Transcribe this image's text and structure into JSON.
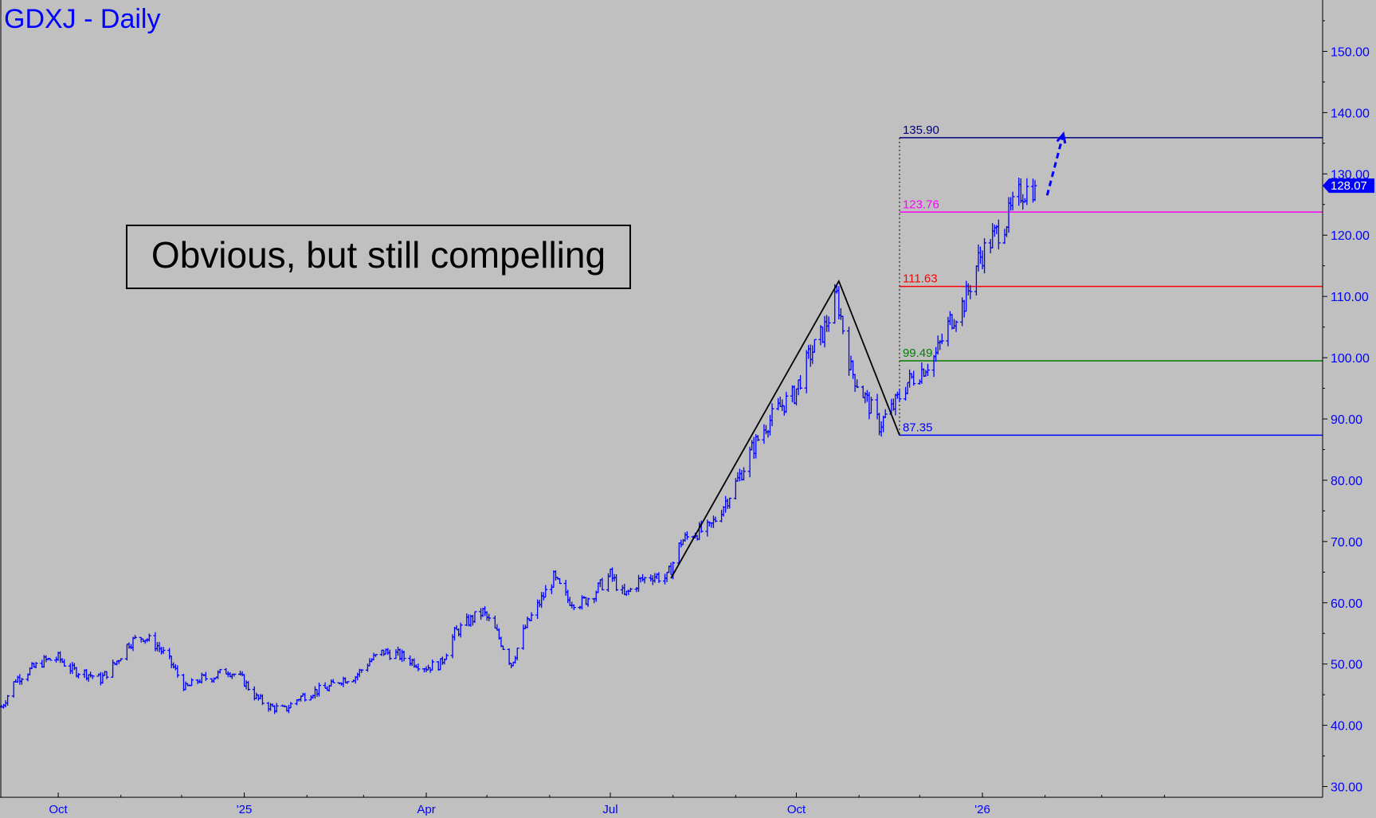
{
  "chart_data": {
    "type": "ohlc",
    "title": "GDXJ - Daily",
    "annotation": "Obvious, but still compelling",
    "colors": {
      "background": "#c0c0c0",
      "price": "#0000ff",
      "axis": "#0000ff",
      "pattern": "#000000",
      "last_price_bg": "#0000ff"
    },
    "y_axis": {
      "position": "right",
      "range": [
        25,
        155
      ],
      "ticks": [
        30,
        40,
        50,
        60,
        70,
        80,
        90,
        100,
        110,
        120,
        130,
        140,
        150
      ],
      "tick_labels": [
        "30.00",
        "40.00",
        "50.00",
        "60.00",
        "70.00",
        "80.00",
        "90.00",
        "100.00",
        "110.00",
        "120.00",
        "130.00",
        "140.00",
        "150.00"
      ]
    },
    "x_axis": {
      "range": [
        "2024-09-03",
        "2026-04-28"
      ],
      "ticks": [
        "2024-10-01",
        "2025-01-01",
        "2025-04-01",
        "2025-07-01",
        "2025-10-01",
        "2026-01-01"
      ],
      "tick_labels": [
        "Oct",
        "'25",
        "Apr",
        "Jul",
        "Oct",
        "'26"
      ]
    },
    "last_price": {
      "value": 128.07,
      "label": "128.07"
    },
    "levels": [
      {
        "value": 135.9,
        "label": "135.90",
        "color": "#000080",
        "kind": "target D"
      },
      {
        "value": 123.76,
        "label": "123.76",
        "color": "#ff00ff",
        "kind": "target C"
      },
      {
        "value": 111.63,
        "label": "111.63",
        "color": "#ff0000",
        "kind": "midpoint"
      },
      {
        "value": 99.49,
        "label": "99.49",
        "color": "#008000",
        "kind": "secondary pivot"
      },
      {
        "value": 87.35,
        "label": "87.35",
        "color": "#0000ff",
        "kind": "point C"
      }
    ],
    "levels_start_date": "2025-11-21",
    "abc_pattern": [
      {
        "date": "2025-07-31",
        "price": 64.0
      },
      {
        "date": "2025-10-22",
        "price": 112.5
      },
      {
        "date": "2025-11-21",
        "price": 87.35
      }
    ],
    "projection": {
      "from": {
        "date": "2026-02-02",
        "price": 126.5
      },
      "to": {
        "date": "2026-02-10",
        "price": 136.5
      },
      "style": "dashed-arrow"
    },
    "series": [
      {
        "type": "close-path",
        "points": [
          [
            "2024-09-03",
            43.0
          ],
          [
            "2024-09-10",
            47.5
          ],
          [
            "2024-09-17",
            49.0
          ],
          [
            "2024-09-24",
            50.5
          ],
          [
            "2024-10-01",
            51.0
          ],
          [
            "2024-10-08",
            49.0
          ],
          [
            "2024-10-15",
            48.5
          ],
          [
            "2024-10-22",
            47.5
          ],
          [
            "2024-10-29",
            50.0
          ],
          [
            "2024-11-05",
            53.5
          ],
          [
            "2024-11-12",
            54.5
          ],
          [
            "2024-11-19",
            53.0
          ],
          [
            "2024-11-26",
            50.0
          ],
          [
            "2024-12-03",
            46.0
          ],
          [
            "2024-12-10",
            47.5
          ],
          [
            "2024-12-17",
            48.0
          ],
          [
            "2024-12-24",
            49.0
          ],
          [
            "2024-12-31",
            47.5
          ],
          [
            "2025-01-07",
            44.5
          ],
          [
            "2025-01-14",
            43.0
          ],
          [
            "2025-01-21",
            42.5
          ],
          [
            "2025-01-28",
            44.5
          ],
          [
            "2025-02-04",
            45.5
          ],
          [
            "2025-02-11",
            46.0
          ],
          [
            "2025-02-18",
            47.5
          ],
          [
            "2025-02-25",
            48.0
          ],
          [
            "2025-03-04",
            50.5
          ],
          [
            "2025-03-11",
            52.0
          ],
          [
            "2025-03-18",
            51.5
          ],
          [
            "2025-03-25",
            50.5
          ],
          [
            "2025-04-01",
            49.5
          ],
          [
            "2025-04-08",
            50.0
          ],
          [
            "2025-04-15",
            55.0
          ],
          [
            "2025-04-22",
            57.0
          ],
          [
            "2025-04-29",
            58.5
          ],
          [
            "2025-05-06",
            55.0
          ],
          [
            "2025-05-13",
            50.0
          ],
          [
            "2025-05-20",
            56.0
          ],
          [
            "2025-05-27",
            60.0
          ],
          [
            "2025-06-03",
            64.0
          ],
          [
            "2025-06-10",
            60.5
          ],
          [
            "2025-06-17",
            60.0
          ],
          [
            "2025-06-24",
            62.0
          ],
          [
            "2025-07-01",
            64.5
          ],
          [
            "2025-07-08",
            61.0
          ],
          [
            "2025-07-15",
            63.5
          ],
          [
            "2025-07-22",
            64.5
          ],
          [
            "2025-07-29",
            64.0
          ],
          [
            "2025-08-05",
            70.0
          ],
          [
            "2025-08-12",
            71.5
          ],
          [
            "2025-08-19",
            72.0
          ],
          [
            "2025-08-26",
            76.0
          ],
          [
            "2025-09-02",
            80.0
          ],
          [
            "2025-09-09",
            85.0
          ],
          [
            "2025-09-16",
            89.0
          ],
          [
            "2025-09-23",
            92.0
          ],
          [
            "2025-09-30",
            94.0
          ],
          [
            "2025-10-07",
            100.0
          ],
          [
            "2025-10-14",
            104.0
          ],
          [
            "2025-10-21",
            110.0
          ],
          [
            "2025-10-28",
            98.0
          ],
          [
            "2025-11-04",
            93.5
          ],
          [
            "2025-11-11",
            89.0
          ],
          [
            "2025-11-18",
            92.0
          ],
          [
            "2025-11-25",
            96.0
          ],
          [
            "2025-12-02",
            98.0
          ],
          [
            "2025-12-09",
            100.5
          ],
          [
            "2025-12-16",
            106.0
          ],
          [
            "2025-12-23",
            109.0
          ],
          [
            "2025-12-30",
            116.0
          ],
          [
            "2026-01-06",
            119.5
          ],
          [
            "2026-01-13",
            122.5
          ],
          [
            "2026-01-20",
            127.0
          ],
          [
            "2026-01-27",
            128.07
          ]
        ]
      }
    ]
  }
}
